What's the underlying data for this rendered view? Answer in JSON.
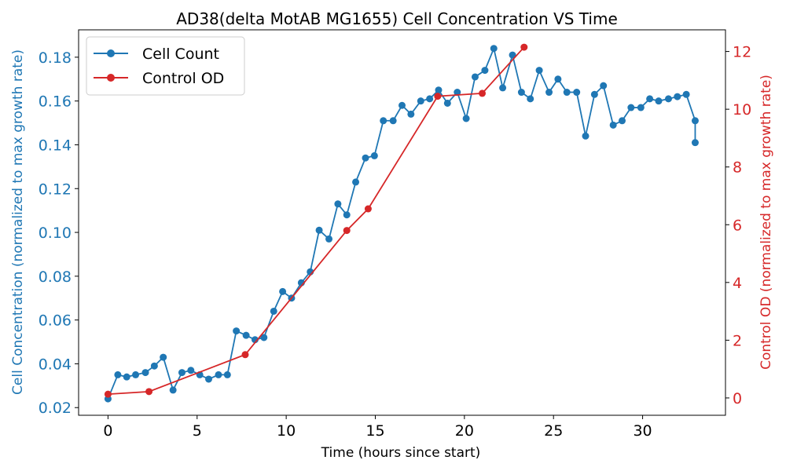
{
  "chart_data": {
    "type": "line",
    "title": "AD38(delta MotAB MG1655) Cell Concentration VS Time",
    "xlabel": "Time (hours since start)",
    "ylabel_left": "Cell Concentration (normalized to max growth rate)",
    "ylabel_right": "Control OD (normalized to max growth rate)",
    "xlim": [
      -1.65,
      34.65
    ],
    "ylim_left": [
      0.0165,
      0.1925
    ],
    "ylim_right": [
      -0.6,
      12.75
    ],
    "x_ticks": [
      0,
      5,
      10,
      15,
      20,
      25,
      30
    ],
    "y_ticks_left": [
      0.02,
      0.04,
      0.06,
      0.08,
      0.1,
      0.12,
      0.14,
      0.16,
      0.18
    ],
    "y_ticks_right": [
      0,
      2,
      4,
      6,
      8,
      10,
      12
    ],
    "legend_position": "top-left",
    "grid": false,
    "series": [
      {
        "name": "Cell Count",
        "axis": "left",
        "color": "#1f77b4",
        "marker": "circle",
        "points": [
          [
            0.0,
            0.024
          ],
          [
            0.55,
            0.035
          ],
          [
            1.05,
            0.034
          ],
          [
            1.55,
            0.035
          ],
          [
            2.1,
            0.036
          ],
          [
            2.6,
            0.039
          ],
          [
            3.1,
            0.043
          ],
          [
            3.65,
            0.028
          ],
          [
            4.15,
            0.036
          ],
          [
            4.65,
            0.037
          ],
          [
            5.15,
            0.035
          ],
          [
            5.65,
            0.033
          ],
          [
            6.2,
            0.035
          ],
          [
            6.7,
            0.035
          ],
          [
            7.2,
            0.055
          ],
          [
            7.75,
            0.053
          ],
          [
            8.25,
            0.051
          ],
          [
            8.75,
            0.052
          ],
          [
            9.3,
            0.064
          ],
          [
            9.8,
            0.073
          ],
          [
            10.3,
            0.07
          ],
          [
            10.85,
            0.077
          ],
          [
            11.35,
            0.082
          ],
          [
            11.85,
            0.101
          ],
          [
            12.4,
            0.097
          ],
          [
            12.9,
            0.113
          ],
          [
            13.4,
            0.108
          ],
          [
            13.9,
            0.123
          ],
          [
            14.45,
            0.134
          ],
          [
            14.95,
            0.135
          ],
          [
            15.45,
            0.151
          ],
          [
            16.0,
            0.151
          ],
          [
            16.5,
            0.158
          ],
          [
            17.0,
            0.154
          ],
          [
            17.55,
            0.16
          ],
          [
            18.05,
            0.161
          ],
          [
            18.55,
            0.165
          ],
          [
            19.05,
            0.159
          ],
          [
            19.6,
            0.164
          ],
          [
            20.1,
            0.152
          ],
          [
            20.6,
            0.171
          ],
          [
            21.15,
            0.174
          ],
          [
            21.65,
            0.184
          ],
          [
            22.15,
            0.166
          ],
          [
            22.7,
            0.181
          ],
          [
            23.2,
            0.164
          ],
          [
            23.7,
            0.161
          ],
          [
            24.2,
            0.174
          ],
          [
            24.75,
            0.164
          ],
          [
            25.25,
            0.17
          ],
          [
            25.75,
            0.164
          ],
          [
            26.3,
            0.164
          ],
          [
            26.8,
            0.144
          ],
          [
            27.3,
            0.163
          ],
          [
            27.8,
            0.167
          ],
          [
            28.35,
            0.149
          ],
          [
            28.85,
            0.151
          ],
          [
            29.35,
            0.157
          ],
          [
            29.9,
            0.157
          ],
          [
            30.4,
            0.161
          ],
          [
            30.9,
            0.16
          ],
          [
            31.45,
            0.161
          ],
          [
            31.95,
            0.162
          ],
          [
            32.45,
            0.163
          ],
          [
            32.95,
            0.151
          ],
          [
            32.95,
            0.141
          ]
        ]
      },
      {
        "name": "Control OD",
        "axis": "right",
        "color": "#d62728",
        "marker": "circle",
        "points": [
          [
            0.0,
            0.13
          ],
          [
            2.3,
            0.22
          ],
          [
            7.7,
            1.5
          ],
          [
            13.4,
            5.8
          ],
          [
            14.6,
            6.55
          ],
          [
            18.5,
            10.45
          ],
          [
            21.0,
            10.55
          ],
          [
            23.35,
            12.15
          ]
        ]
      }
    ]
  }
}
